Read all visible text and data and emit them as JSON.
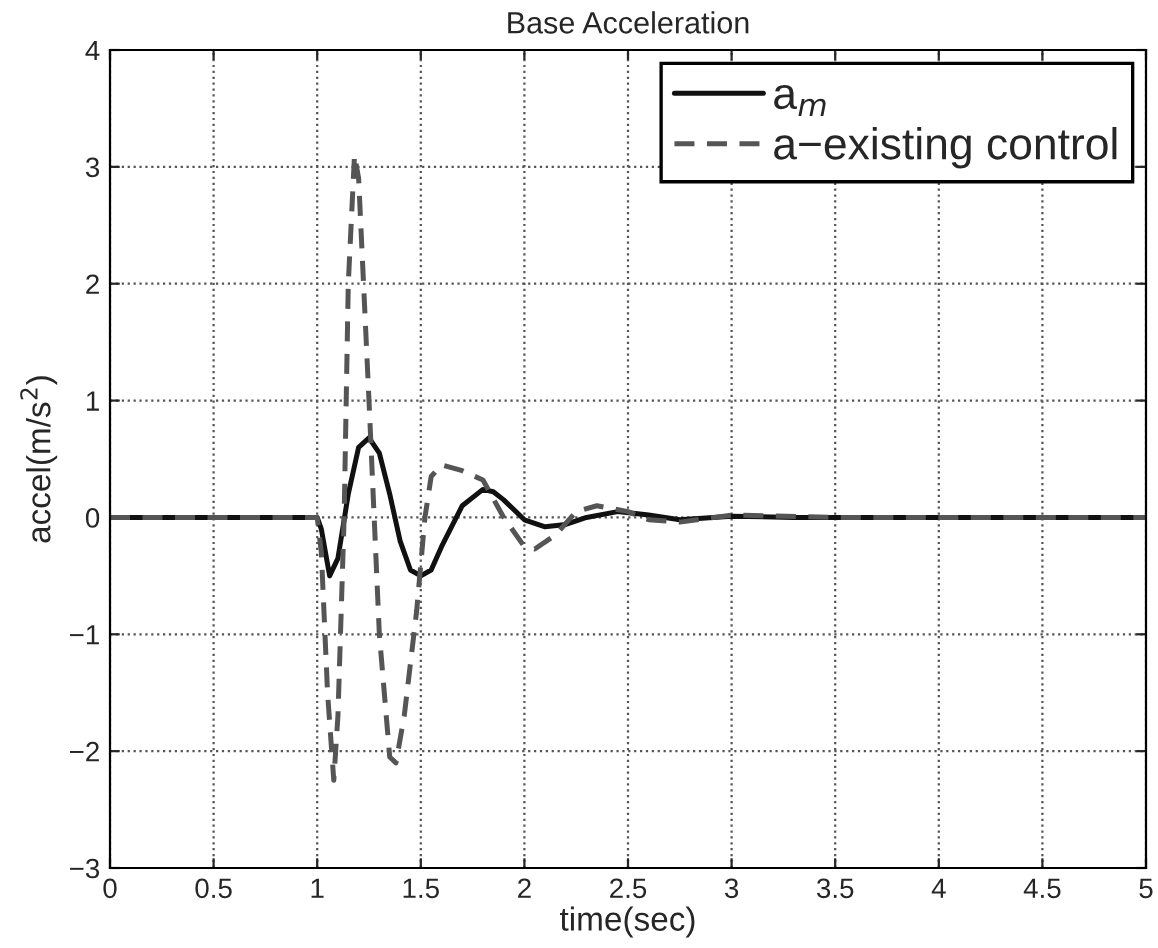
{
  "chart_data": {
    "type": "line",
    "title": "Base Acceleration",
    "xlabel": "time(sec)",
    "ylabel": "accel(m/s$^{2}$)",
    "xlim": [
      0,
      5
    ],
    "ylim": [
      -3,
      4
    ],
    "xticks": [
      0,
      0.5,
      1,
      1.5,
      2,
      2.5,
      3,
      3.5,
      4,
      4.5,
      5
    ],
    "yticks": [
      -3,
      -2,
      -1,
      0,
      1,
      2,
      3,
      4
    ],
    "grid": true,
    "legend": "top right",
    "series": [
      {
        "name": "a$_{m}$",
        "color": "#111111",
        "line_style": "solid",
        "x": [
          0,
          1.0,
          1.02,
          1.06,
          1.1,
          1.15,
          1.2,
          1.25,
          1.3,
          1.35,
          1.4,
          1.45,
          1.5,
          1.55,
          1.6,
          1.7,
          1.8,
          1.85,
          1.9,
          2.0,
          2.1,
          2.2,
          2.3,
          2.45,
          2.6,
          2.75,
          3.0,
          3.3,
          5
        ],
        "values": [
          0,
          0,
          -0.1,
          -0.5,
          -0.35,
          0.2,
          0.6,
          0.68,
          0.55,
          0.2,
          -0.2,
          -0.45,
          -0.5,
          -0.45,
          -0.25,
          0.1,
          0.24,
          0.22,
          0.15,
          -0.02,
          -0.08,
          -0.06,
          0.0,
          0.05,
          0.02,
          -0.02,
          0.01,
          0,
          0
        ]
      },
      {
        "name": "a−existing control",
        "color": "#555555",
        "line_style": "dashed",
        "x": [
          0,
          1.0,
          1.02,
          1.05,
          1.08,
          1.1,
          1.13,
          1.15,
          1.18,
          1.2,
          1.25,
          1.3,
          1.35,
          1.38,
          1.42,
          1.48,
          1.52,
          1.55,
          1.6,
          1.7,
          1.8,
          1.9,
          2.0,
          2.05,
          2.15,
          2.25,
          2.35,
          2.5,
          2.6,
          2.75,
          3.0,
          3.5,
          5
        ],
        "values": [
          0,
          0,
          -0.3,
          -1.5,
          -2.25,
          -1.7,
          0,
          2,
          3.1,
          2.9,
          1.0,
          -1,
          -2.05,
          -2.1,
          -1.7,
          -0.8,
          0.0,
          0.35,
          0.45,
          0.4,
          0.32,
          0.0,
          -0.25,
          -0.27,
          -0.15,
          0.05,
          0.1,
          0.05,
          -0.02,
          -0.04,
          0.02,
          0,
          0
        ]
      }
    ]
  }
}
